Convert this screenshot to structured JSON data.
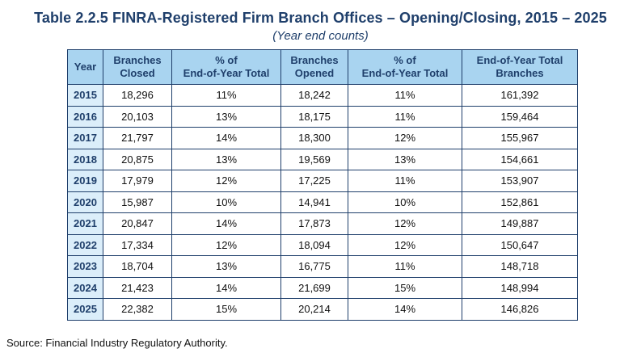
{
  "title": "Table 2.2.5 FINRA-Registered Firm Branch Offices – Opening/Closing, 2015 – 2025",
  "subtitle": "(Year end counts)",
  "headers": {
    "year": "Year",
    "closed_l1": "Branches",
    "closed_l2": "Closed",
    "pct_closed_l1": "% of",
    "pct_closed_l2": "End-of-Year Total",
    "opened_l1": "Branches",
    "opened_l2": "Opened",
    "pct_opened_l1": "% of",
    "pct_opened_l2": "End-of-Year Total",
    "total_l1": "End-of-Year Total",
    "total_l2": "Branches"
  },
  "rows": [
    {
      "year": "2015",
      "closed": "18,296",
      "pct_closed": "11%",
      "opened": "18,242",
      "pct_opened": "11%",
      "total": "161,392"
    },
    {
      "year": "2016",
      "closed": "20,103",
      "pct_closed": "13%",
      "opened": "18,175",
      "pct_opened": "11%",
      "total": "159,464"
    },
    {
      "year": "2017",
      "closed": "21,797",
      "pct_closed": "14%",
      "opened": "18,300",
      "pct_opened": "12%",
      "total": "155,967"
    },
    {
      "year": "2018",
      "closed": "20,875",
      "pct_closed": "13%",
      "opened": "19,569",
      "pct_opened": "13%",
      "total": "154,661"
    },
    {
      "year": "2019",
      "closed": "17,979",
      "pct_closed": "12%",
      "opened": "17,225",
      "pct_opened": "11%",
      "total": "153,907"
    },
    {
      "year": "2020",
      "closed": "15,987",
      "pct_closed": "10%",
      "opened": "14,941",
      "pct_opened": "10%",
      "total": "152,861"
    },
    {
      "year": "2021",
      "closed": "20,847",
      "pct_closed": "14%",
      "opened": "17,873",
      "pct_opened": "12%",
      "total": "149,887"
    },
    {
      "year": "2022",
      "closed": "17,334",
      "pct_closed": "12%",
      "opened": "18,094",
      "pct_opened": "12%",
      "total": "150,647"
    },
    {
      "year": "2023",
      "closed": "18,704",
      "pct_closed": "13%",
      "opened": "16,775",
      "pct_opened": "11%",
      "total": "148,718"
    },
    {
      "year": "2024",
      "closed": "21,423",
      "pct_closed": "14%",
      "opened": "21,699",
      "pct_opened": "15%",
      "total": "148,994"
    },
    {
      "year": "2025",
      "closed": "22,382",
      "pct_closed": "15%",
      "opened": "20,214",
      "pct_opened": "14%",
      "total": "146,826"
    }
  ],
  "source": "Source: Financial Industry Regulatory Authority.",
  "colors": {
    "title": "#1f3f6b",
    "header_bg": "#a9d4f0",
    "year_bg": "#dbeefa",
    "border": "#1f3f6b"
  }
}
